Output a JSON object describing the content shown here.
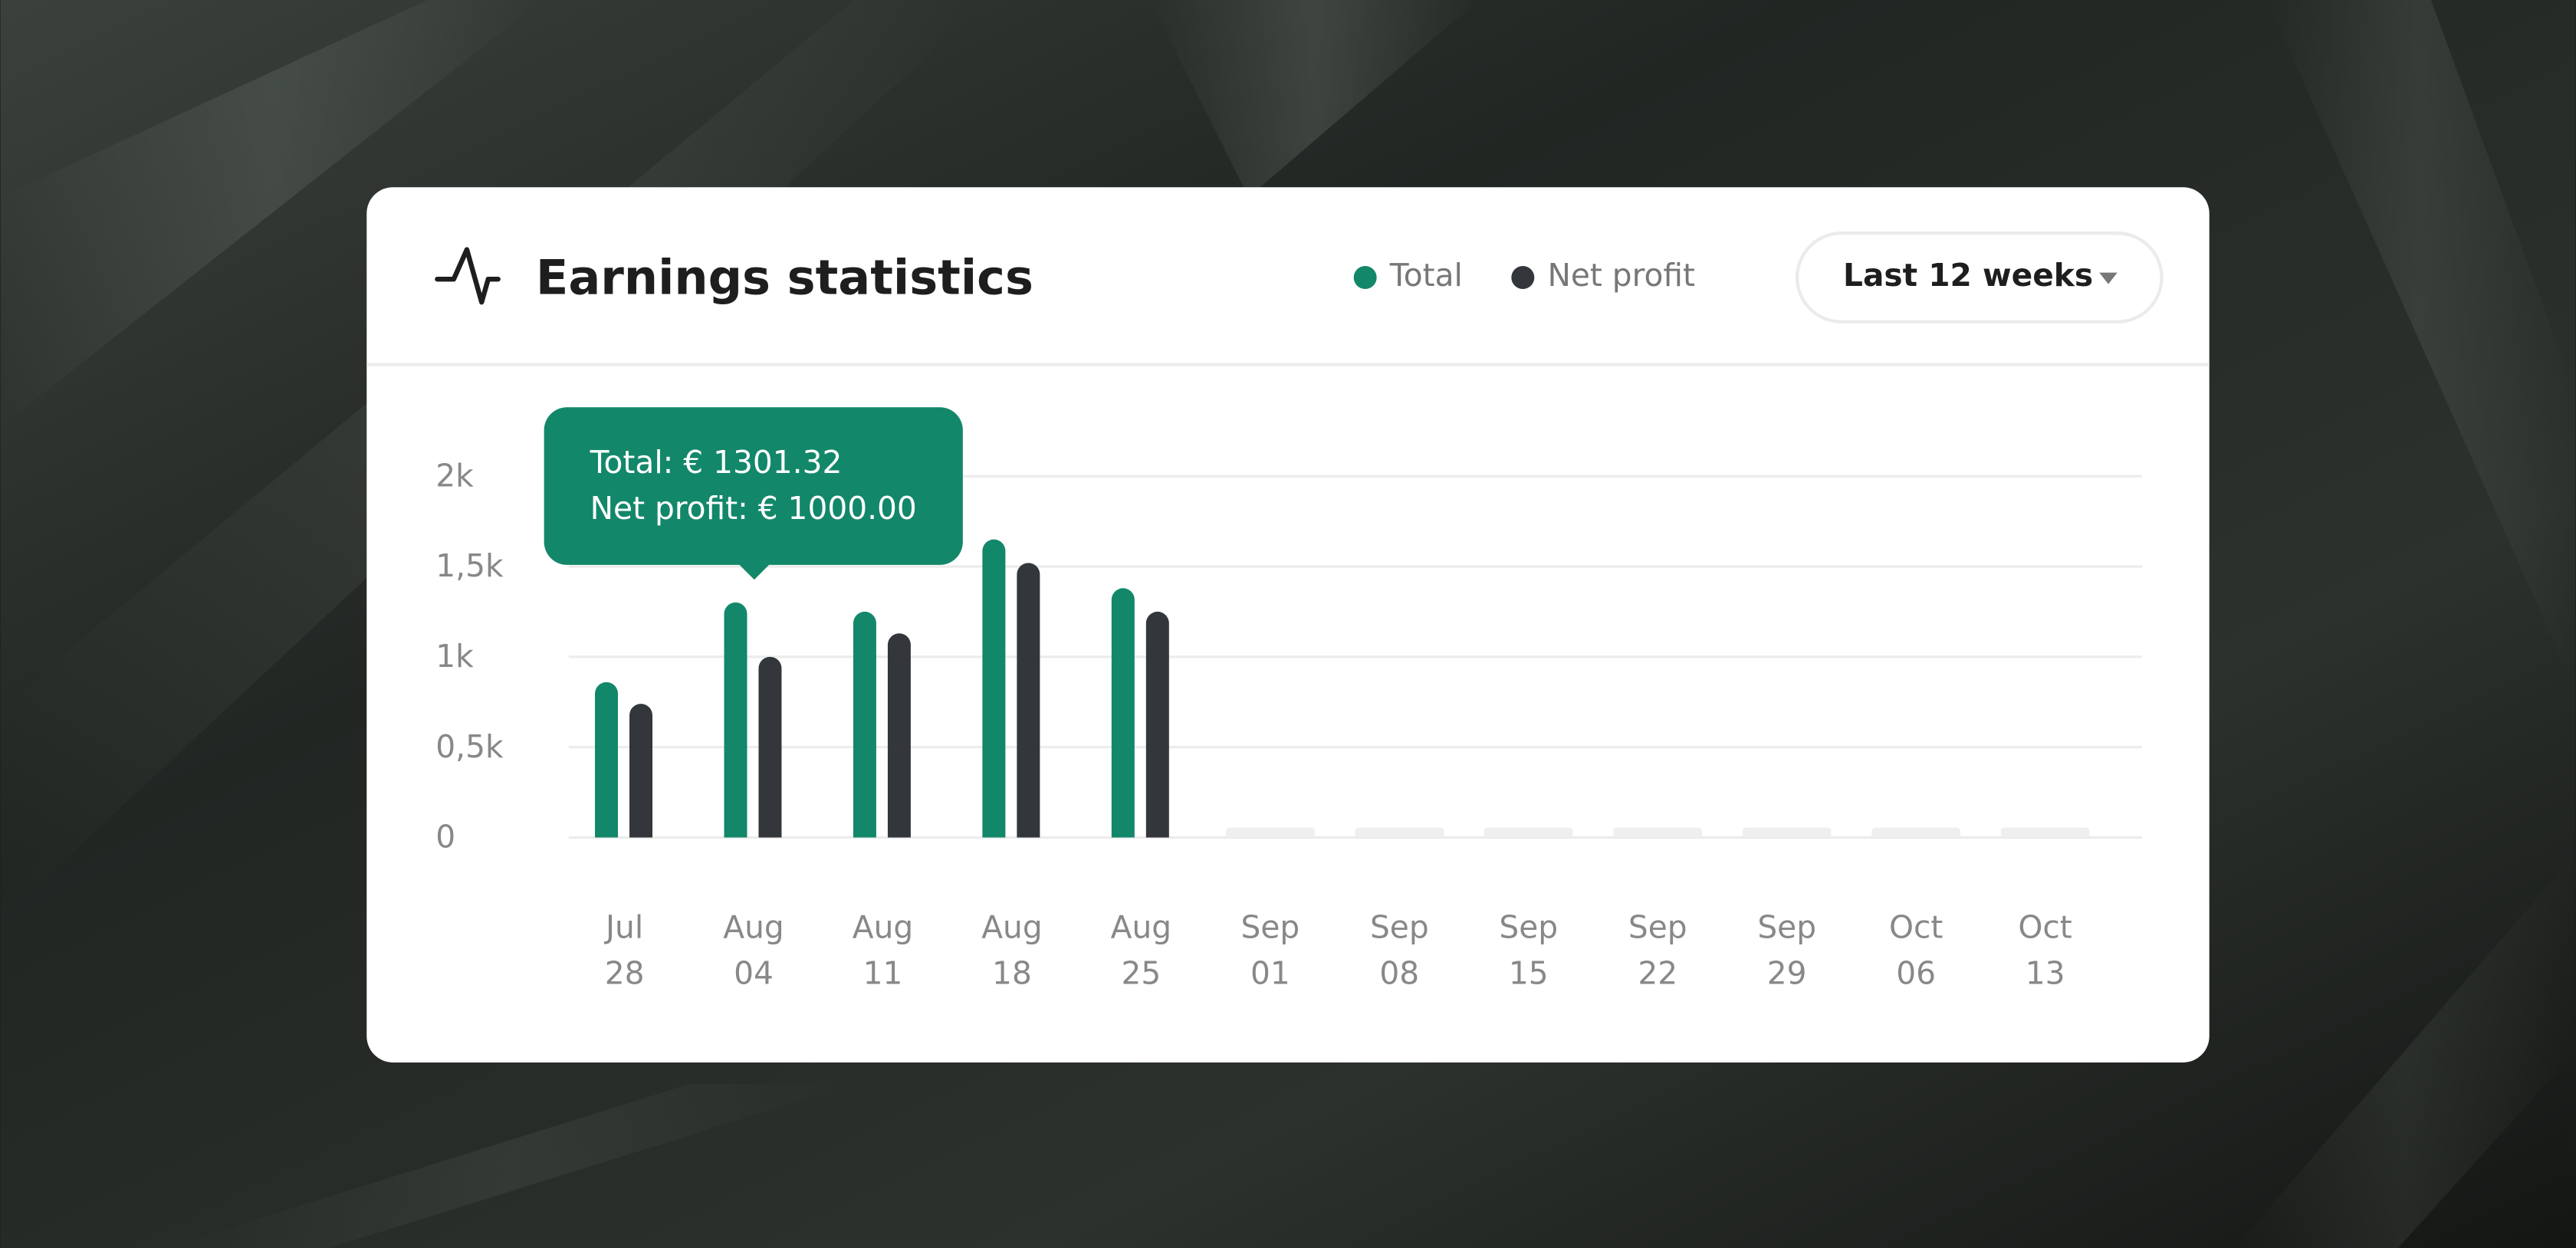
{
  "chart_data": {
    "type": "bar",
    "title": "Earnings statistics",
    "range_button": "Last 12 weeks",
    "categories": [
      [
        "Jul",
        "28"
      ],
      [
        "Aug",
        "04"
      ],
      [
        "Aug",
        "11"
      ],
      [
        "Aug",
        "18"
      ],
      [
        "Aug",
        "25"
      ],
      [
        "Sep",
        "01"
      ],
      [
        "Sep",
        "08"
      ],
      [
        "Sep",
        "15"
      ],
      [
        "Sep",
        "22"
      ],
      [
        "Sep",
        "29"
      ],
      [
        "Oct",
        "06"
      ],
      [
        "Oct",
        "13"
      ]
    ],
    "series": [
      {
        "name": "Total",
        "color": "#13876a",
        "values": [
          860,
          1301.32,
          1250,
          1650,
          1380,
          null,
          null,
          null,
          null,
          null,
          null,
          null
        ]
      },
      {
        "name": "Net profit",
        "color": "#33363b",
        "values": [
          740,
          1000,
          1130,
          1520,
          1250,
          null,
          null,
          null,
          null,
          null,
          null,
          null
        ]
      }
    ],
    "ylim": [
      0,
      2000
    ],
    "yticks": [
      0,
      {
        "value": 500,
        "label": "0,5k"
      },
      {
        "value": 1000,
        "label": "1k"
      },
      {
        "value": 1500,
        "label": "1,5k"
      },
      {
        "value": 2000,
        "label": "2k"
      }
    ],
    "grid": true,
    "tooltip": [
      "Total: € 1301.32",
      "Net profit: € 1000.00"
    ]
  }
}
